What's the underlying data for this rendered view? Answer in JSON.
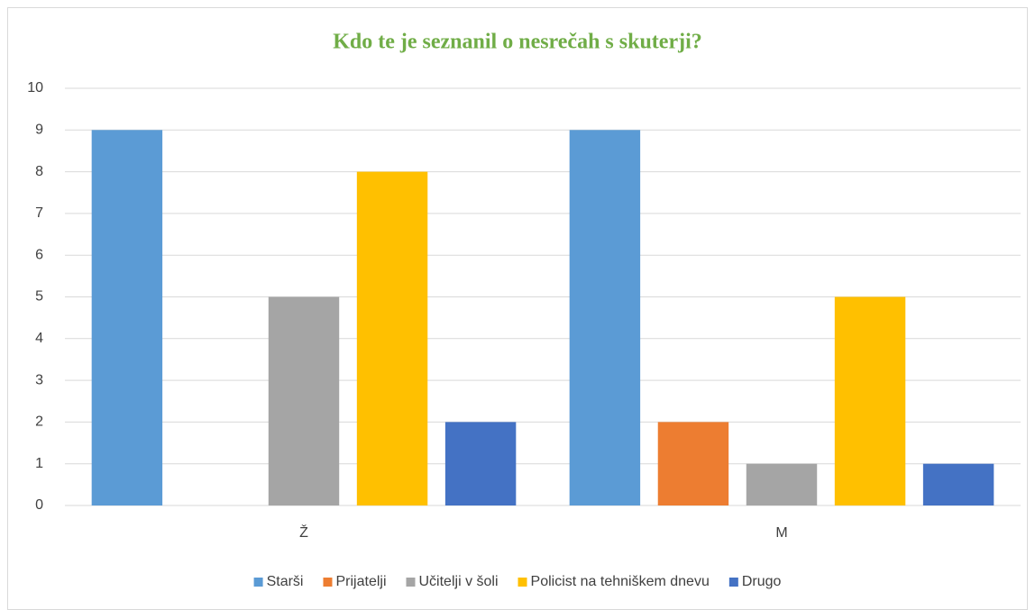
{
  "chart_data": {
    "type": "bar",
    "title": "Kdo te je seznanil o nesrečah s skuterji?",
    "categories": [
      "Ž",
      "M"
    ],
    "series": [
      {
        "name": "Starši",
        "color": "#5b9bd5",
        "values": [
          9,
          9
        ]
      },
      {
        "name": "Prijatelji",
        "color": "#ed7d31",
        "values": [
          0,
          2
        ]
      },
      {
        "name": "Učitelji v šoli",
        "color": "#a5a5a5",
        "values": [
          5,
          1
        ]
      },
      {
        "name": "Policist na tehniškem dnevu",
        "color": "#ffc000",
        "values": [
          8,
          5
        ]
      },
      {
        "name": "Drugo",
        "color": "#4472c4",
        "values": [
          2,
          1
        ]
      }
    ],
    "ylim": [
      0,
      10
    ],
    "yticks": [
      0,
      1,
      2,
      3,
      4,
      5,
      6,
      7,
      8,
      9,
      10
    ],
    "grid": true,
    "legend": "bottom"
  }
}
